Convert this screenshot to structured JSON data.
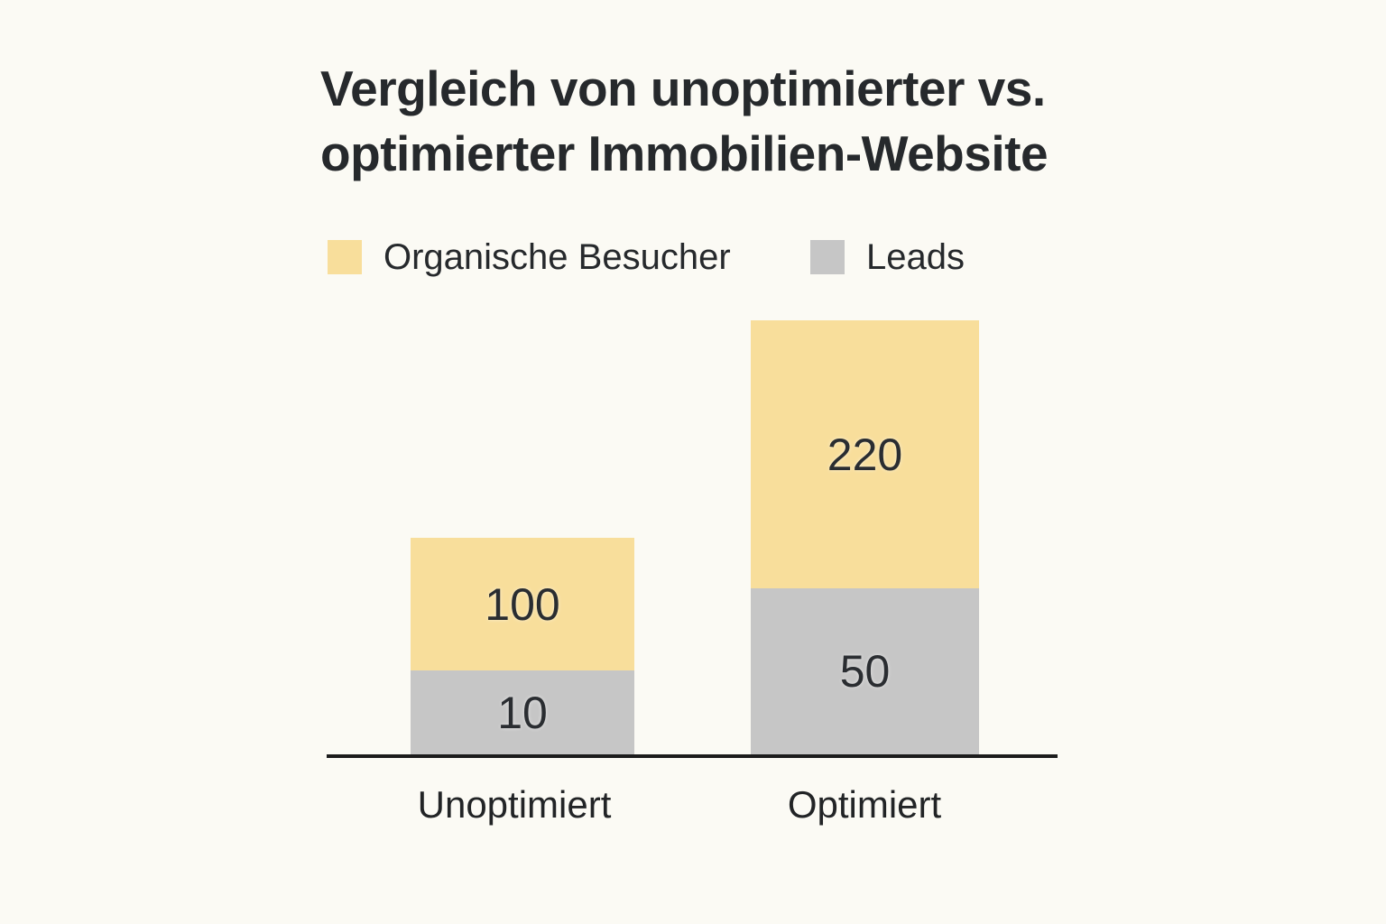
{
  "page": {
    "background_color": "#FBFAF4",
    "text_color": "#26292C"
  },
  "header": {
    "title_line1": "Vergleich von unoptimierter vs.",
    "title_line2": "optimierter Immobilien-Website"
  },
  "legend": {
    "position": "top",
    "items": [
      {
        "label": "Organische Besucher",
        "color": "#F8DE9B"
      },
      {
        "label": "Leads",
        "color": "#C6C6C6"
      }
    ]
  },
  "chart_data": {
    "type": "bar",
    "stacked": true,
    "title": "Vergleich von unoptimierter vs. optimierter Immobilien-Website",
    "categories": [
      "Unoptimiert",
      "Optimiert"
    ],
    "series": [
      {
        "name": "Organische Besucher",
        "color": "#F8DE9B",
        "values": [
          100,
          220
        ]
      },
      {
        "name": "Leads",
        "color": "#C6C6C6",
        "values": [
          10,
          50
        ]
      }
    ],
    "value_labels_shown": true,
    "grid": false,
    "y_axis_shown": false,
    "axis_line_color": "#1C1C1C",
    "legend_position": "top"
  }
}
